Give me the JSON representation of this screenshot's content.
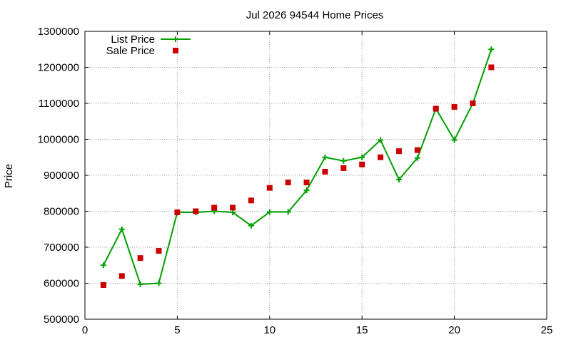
{
  "chart_data": {
    "type": "line",
    "title": "Jul 2026 94544 Home Prices",
    "xlabel": "",
    "ylabel": "Price",
    "xlim": [
      0,
      25
    ],
    "ylim": [
      500000,
      1300000
    ],
    "xticks": [
      0,
      5,
      10,
      15,
      20,
      25
    ],
    "yticks": [
      500000,
      600000,
      700000,
      800000,
      900000,
      1000000,
      1100000,
      1200000,
      1300000
    ],
    "grid": true,
    "legend": "top-left",
    "series": [
      {
        "name": "List Price",
        "style": "line+plus",
        "color": "#00a000",
        "x": [
          1,
          2,
          3,
          4,
          5,
          6,
          7,
          8,
          9,
          10,
          11,
          12,
          13,
          14,
          15,
          16,
          17,
          18,
          19,
          20,
          21,
          22
        ],
        "y": [
          650000,
          750000,
          597000,
          600000,
          797000,
          797000,
          800000,
          797000,
          760000,
          798000,
          798000,
          858000,
          950000,
          940000,
          950000,
          998000,
          888000,
          948000,
          1085000,
          998000,
          1100000,
          1250000
        ]
      },
      {
        "name": "Sale Price",
        "style": "squares",
        "color": "#cc0000",
        "x": [
          1,
          2,
          3,
          4,
          5,
          6,
          7,
          8,
          9,
          10,
          11,
          12,
          13,
          14,
          15,
          16,
          17,
          18,
          19,
          20,
          21,
          22
        ],
        "y": [
          595000,
          620000,
          670000,
          690000,
          797000,
          800000,
          810000,
          810000,
          830000,
          865000,
          880000,
          880000,
          910000,
          920000,
          930000,
          950000,
          967000,
          970000,
          1085000,
          1090000,
          1100000,
          1200000
        ]
      }
    ]
  }
}
